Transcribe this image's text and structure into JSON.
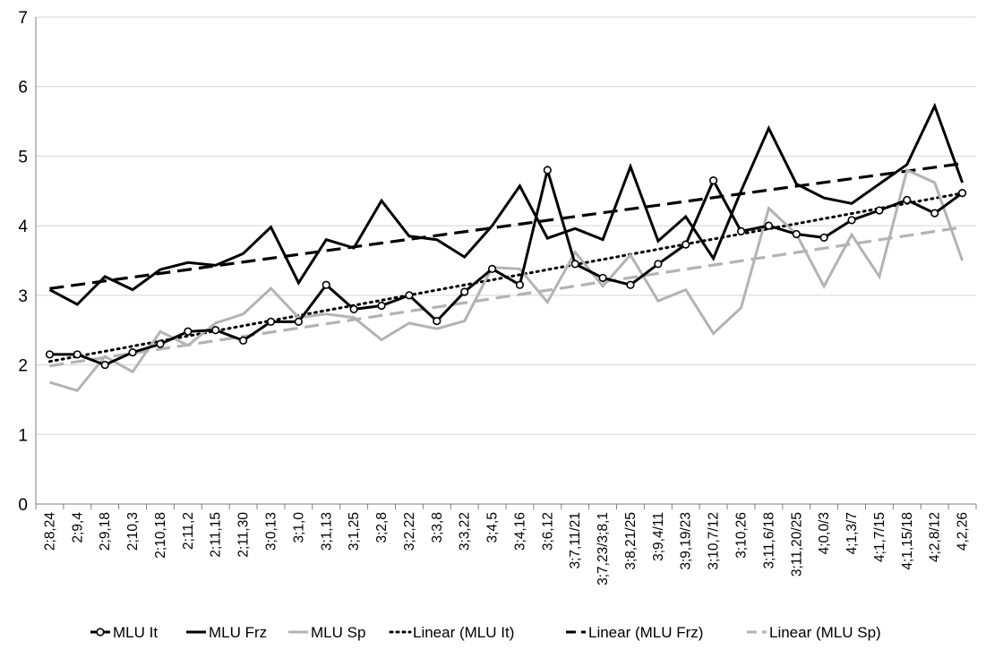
{
  "chart_data": {
    "type": "line",
    "title": "",
    "xlabel": "",
    "ylabel": "",
    "ylim": [
      0,
      7
    ],
    "yticks": [
      0,
      1,
      2,
      3,
      4,
      5,
      6,
      7
    ],
    "grid": "horizontal",
    "legend_position": "bottom",
    "categories": [
      "2;8,24",
      "2;9,4",
      "2;9,18",
      "2;10,3",
      "2;10,18",
      "2;11,2",
      "2;11,15",
      "2;11,30",
      "3;0,13",
      "3;1,0",
      "3;1,13",
      "3;1,25",
      "3;2,8",
      "3;2,22",
      "3;3,8",
      "3;3,22",
      "3;4,5",
      "3;4,16",
      "3;6,12",
      "3;7,11/21",
      "3;7,23/3;8,1",
      "3;8,21/25",
      "3;9,4/11",
      "3;9,19/23",
      "3;10,7/12",
      "3;10,26",
      "3;11,6/18",
      "3;11,20/25",
      "4;0,0/3",
      "4;1,3/7",
      "4;1,7/15",
      "4;1,15/18",
      "4;2,8/12",
      "4,2,26"
    ],
    "series": [
      {
        "name": "MLU It",
        "color": "#000000",
        "style": "solid-marker",
        "values": [
          2.15,
          2.15,
          2.0,
          2.18,
          2.3,
          2.48,
          2.5,
          2.35,
          2.62,
          2.62,
          3.15,
          2.8,
          2.85,
          3.0,
          2.63,
          3.05,
          3.38,
          3.15,
          4.8,
          3.45,
          3.25,
          3.15,
          3.45,
          3.73,
          4.65,
          3.92,
          4.0,
          3.88,
          3.83,
          4.08,
          4.22,
          4.37,
          4.18,
          4.47
        ]
      },
      {
        "name": "MLU Frz",
        "color": "#000000",
        "style": "solid",
        "values": [
          3.08,
          2.87,
          3.27,
          3.08,
          3.37,
          3.47,
          3.43,
          3.6,
          3.98,
          3.18,
          3.8,
          3.68,
          4.36,
          3.85,
          3.8,
          3.55,
          4.0,
          4.57,
          3.82,
          3.96,
          3.8,
          4.85,
          3.78,
          4.13,
          3.53,
          4.5,
          5.4,
          4.6,
          4.4,
          4.32,
          4.6,
          4.88,
          5.72,
          4.62
        ]
      },
      {
        "name": "MLU Sp",
        "color": "#b3b3b3",
        "style": "solid",
        "values": [
          1.75,
          1.63,
          2.12,
          1.9,
          2.48,
          2.28,
          2.6,
          2.73,
          3.1,
          2.68,
          2.73,
          2.68,
          2.36,
          2.6,
          2.52,
          2.63,
          3.4,
          3.38,
          2.9,
          3.62,
          3.13,
          3.58,
          2.92,
          3.08,
          2.45,
          2.82,
          4.25,
          3.88,
          3.13,
          3.87,
          3.27,
          4.8,
          4.62,
          3.5
        ]
      }
    ],
    "trendlines": [
      {
        "name": "Linear (MLU It)",
        "of": "MLU It",
        "color": "#000000",
        "style": "dotted"
      },
      {
        "name": "Linear (MLU Frz)",
        "of": "MLU Frz",
        "color": "#000000",
        "style": "dashed"
      },
      {
        "name": "Linear (MLU Sp)",
        "of": "MLU Sp",
        "color": "#b3b3b3",
        "style": "dashed"
      }
    ]
  }
}
